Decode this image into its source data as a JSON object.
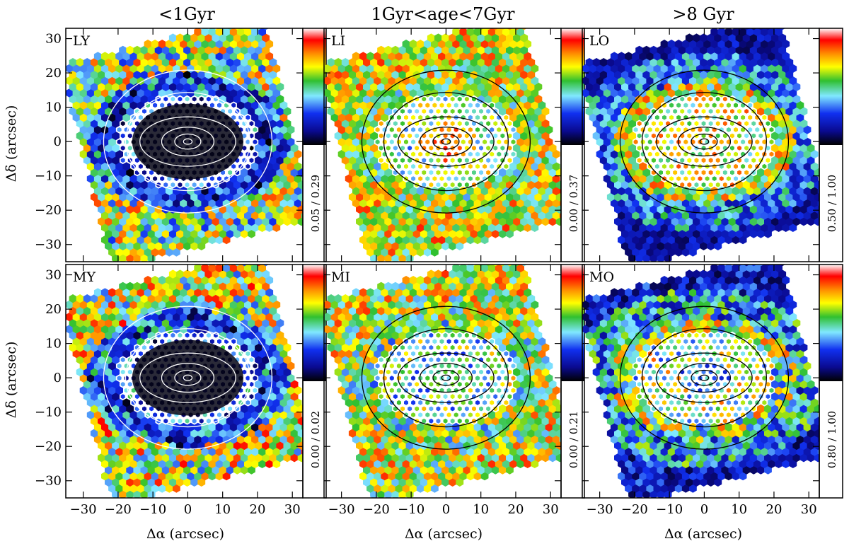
{
  "chart_data": {
    "type": "heatmap",
    "column_titles": [
      "<1Gyr",
      "1Gyr<age<7Gyr",
      ">8 Gyr"
    ],
    "xlabel": "Δα  (arcsec)",
    "ylabel": "Δδ  (arcsec)",
    "xlim": [
      -35,
      33
    ],
    "ylim": [
      -35,
      33
    ],
    "xticks": [
      -30,
      -20,
      -10,
      0,
      10,
      20,
      30
    ],
    "yticks": [
      -30,
      -20,
      -10,
      0,
      10,
      20,
      30
    ],
    "colormap": [
      "#000000",
      "#0a0a90",
      "#1030f0",
      "#80e8ff",
      "#30c030",
      "#ffff00",
      "#ff9000",
      "#ff0000",
      "#ffffff"
    ],
    "contour_ellipses_arcsec": [
      [
        1,
        0.8
      ],
      [
        3,
        2.2
      ],
      [
        6,
        4.2
      ],
      [
        11,
        7.2
      ],
      [
        17,
        11
      ],
      [
        23,
        16
      ]
    ],
    "panels": [
      {
        "label": "LY",
        "row": 0,
        "col": 0,
        "contour_color": "#ffffff",
        "scale": "0.05  /  0.29",
        "pattern": "young"
      },
      {
        "label": "LI",
        "row": 0,
        "col": 1,
        "contour_color": "#000000",
        "scale": "0.00  /  0.37",
        "pattern": "inter"
      },
      {
        "label": "LO",
        "row": 0,
        "col": 2,
        "contour_color": "#000000",
        "scale": "0.50  /  1.00",
        "pattern": "old"
      },
      {
        "label": "MY",
        "row": 1,
        "col": 0,
        "contour_color": "#ffffff",
        "scale": "0.00  /  0.02",
        "pattern": "young2"
      },
      {
        "label": "MI",
        "row": 1,
        "col": 1,
        "contour_color": "#000000",
        "scale": "0.00  /  0.21",
        "pattern": "inter2"
      },
      {
        "label": "MO",
        "row": 1,
        "col": 2,
        "contour_color": "#000000",
        "scale": "0.80  /  1.00",
        "pattern": "old2"
      }
    ]
  }
}
